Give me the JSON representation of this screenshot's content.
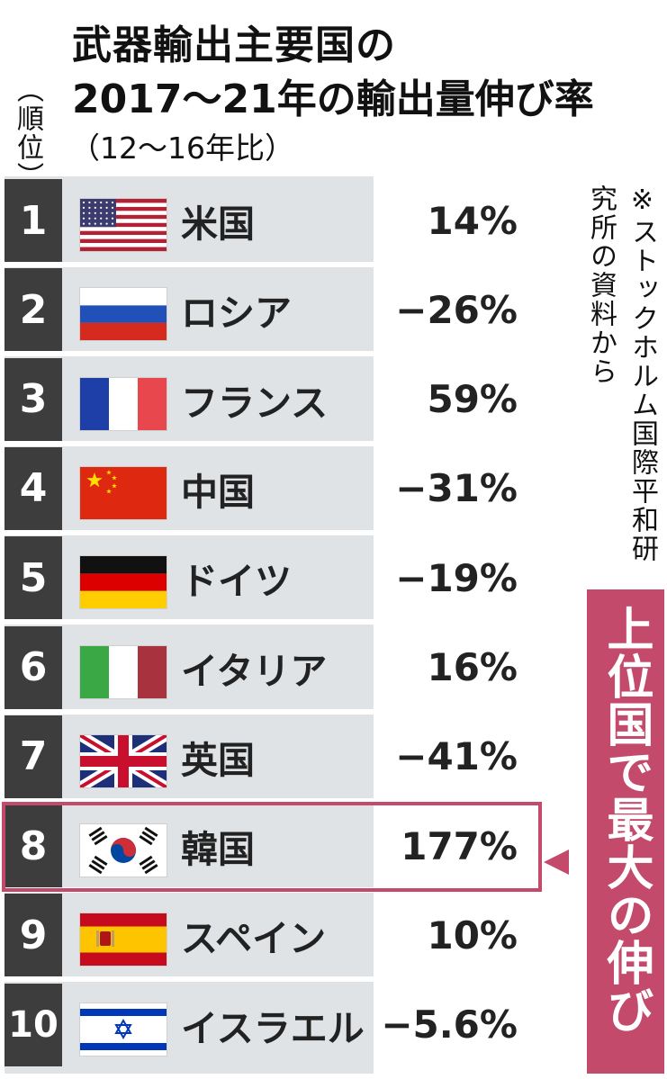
{
  "title": {
    "line1": "武器輸出主要国の",
    "line2": "2017～21年の輸出量伸び率",
    "subtitle": "（12～16年比）"
  },
  "rank_label": "（順位）",
  "source_note": "※ストックホルム国際平和研究所の資料から",
  "callout": "上位国で最大の伸び率",
  "colors": {
    "accent": "#c44a6c",
    "rank_bg": "#3d3d3d",
    "table_bg": "#dfe3e6"
  },
  "rows": [
    {
      "rank": "1",
      "country": "米国",
      "value": "14%",
      "flag": "usa-flag"
    },
    {
      "rank": "2",
      "country": "ロシア",
      "value": "−26%",
      "flag": "russia-flag"
    },
    {
      "rank": "3",
      "country": "フランス",
      "value": "59%",
      "flag": "france-flag"
    },
    {
      "rank": "4",
      "country": "中国",
      "value": "−31%",
      "flag": "china-flag"
    },
    {
      "rank": "5",
      "country": "ドイツ",
      "value": "−19%",
      "flag": "germany-flag"
    },
    {
      "rank": "6",
      "country": "イタリア",
      "value": "16%",
      "flag": "italy-flag"
    },
    {
      "rank": "7",
      "country": "英国",
      "value": "−41%",
      "flag": "uk-flag"
    },
    {
      "rank": "8",
      "country": "韓国",
      "value": "177%",
      "flag": "korea-flag",
      "highlighted": true
    },
    {
      "rank": "9",
      "country": "スペイン",
      "value": "10%",
      "flag": "spain-flag"
    },
    {
      "rank": "10",
      "country": "イスラエル",
      "value": "−5.6%",
      "flag": "israel-flag"
    }
  ],
  "chart_data": {
    "type": "table",
    "title": "武器輸出主要国の2017～21年の輸出量伸び率（12～16年比）",
    "columns": [
      "順位",
      "国",
      "伸び率"
    ],
    "categories": [
      "米国",
      "ロシア",
      "フランス",
      "中国",
      "ドイツ",
      "イタリア",
      "英国",
      "韓国",
      "スペイン",
      "イスラエル"
    ],
    "ranks": [
      1,
      2,
      3,
      4,
      5,
      6,
      7,
      8,
      9,
      10
    ],
    "values": [
      14,
      -26,
      59,
      -31,
      -19,
      16,
      -41,
      177,
      10,
      -5.6
    ],
    "unit": "%",
    "highlight": "韓国"
  }
}
